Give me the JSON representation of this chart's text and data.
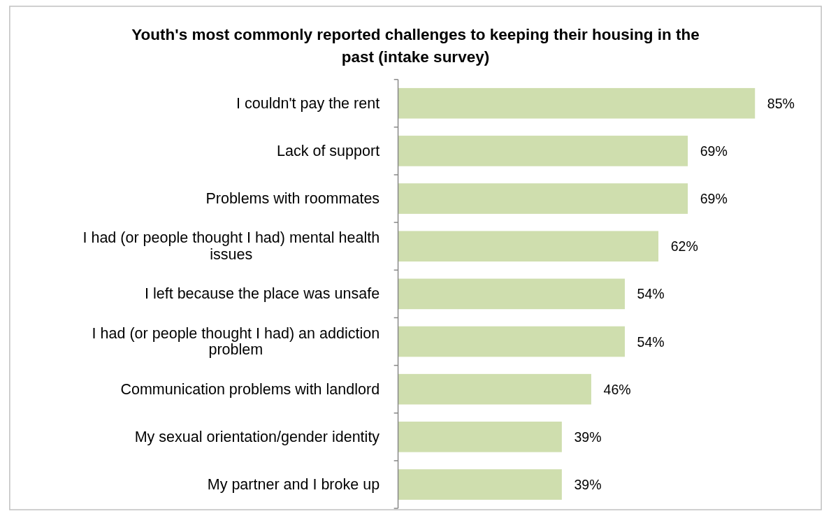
{
  "chart_data": {
    "type": "bar",
    "orientation": "horizontal",
    "title": "Youth's most commonly reported challenges to keeping their housing in the past (intake survey)",
    "categories": [
      "I couldn't pay the rent",
      "Lack of support",
      "Problems with roommates",
      "I had (or people thought I had) mental health issues",
      "I left because the place was unsafe",
      "I had (or people thought I had) an addiction problem",
      "Communication problems with landlord",
      "My sexual orientation/gender identity",
      "My partner and I broke up"
    ],
    "values": [
      85,
      69,
      69,
      62,
      54,
      54,
      46,
      39,
      39
    ],
    "value_labels": [
      "85%",
      "69%",
      "69%",
      "62%",
      "54%",
      "54%",
      "46%",
      "39%",
      "39%"
    ],
    "color": "#cfdeae"
  }
}
